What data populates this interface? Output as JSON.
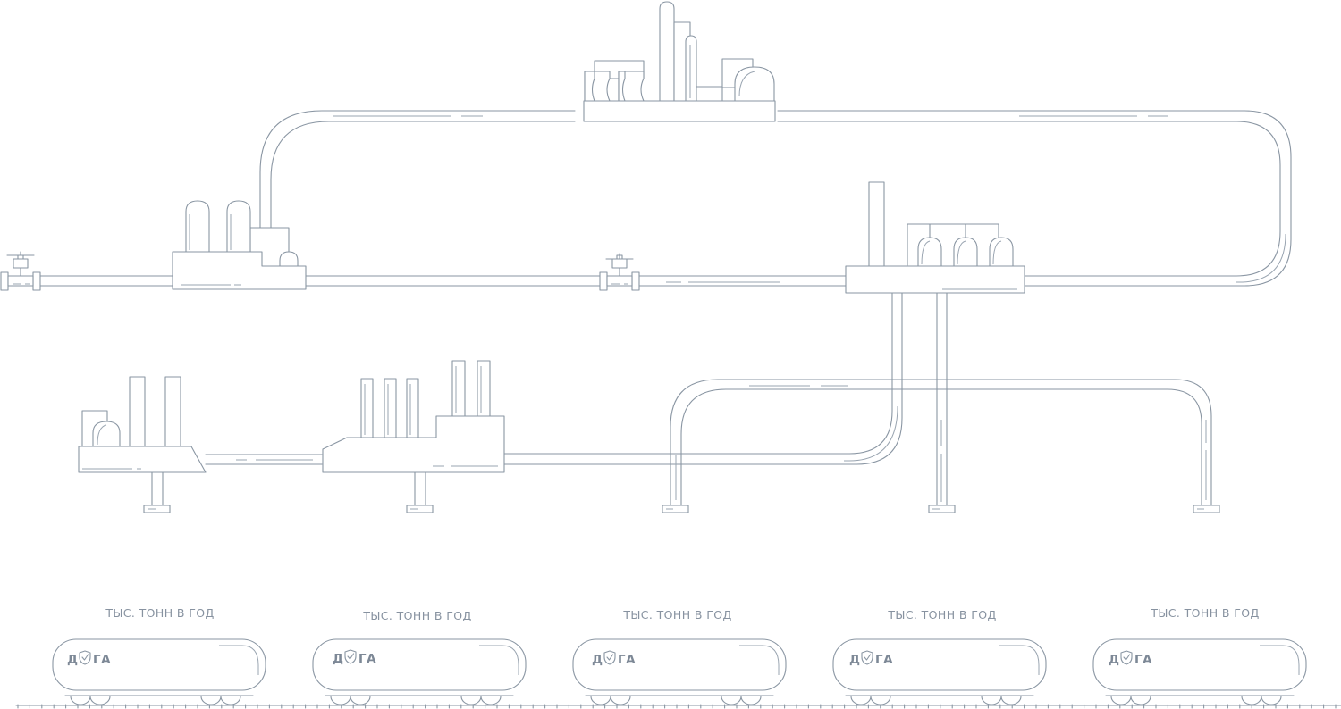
{
  "colors": {
    "line": "#8a96a3",
    "text": "#8792a0",
    "background": "#ffffff"
  },
  "wagons": [
    {
      "caption": "ТЫС. ТОНН В ГОД",
      "logo_prefix": "Д",
      "logo_suffix": "ГА",
      "logo_icon": "shield-check-icon"
    },
    {
      "caption": "ТЫС. ТОНН В ГОД",
      "logo_prefix": "Д",
      "logo_suffix": "ГА",
      "logo_icon": "shield-check-icon"
    },
    {
      "caption": "ТЫС. ТОНН В ГОД",
      "logo_prefix": "Д",
      "logo_suffix": "ГА",
      "logo_icon": "shield-check-icon"
    },
    {
      "caption": "ТЫС. ТОНН В ГОД",
      "logo_prefix": "Д",
      "logo_suffix": "ГА",
      "logo_icon": "shield-check-icon"
    },
    {
      "caption": "ТЫС. ТОНН В ГОД",
      "logo_prefix": "Д",
      "logo_suffix": "ГА",
      "logo_icon": "shield-check-icon"
    }
  ]
}
